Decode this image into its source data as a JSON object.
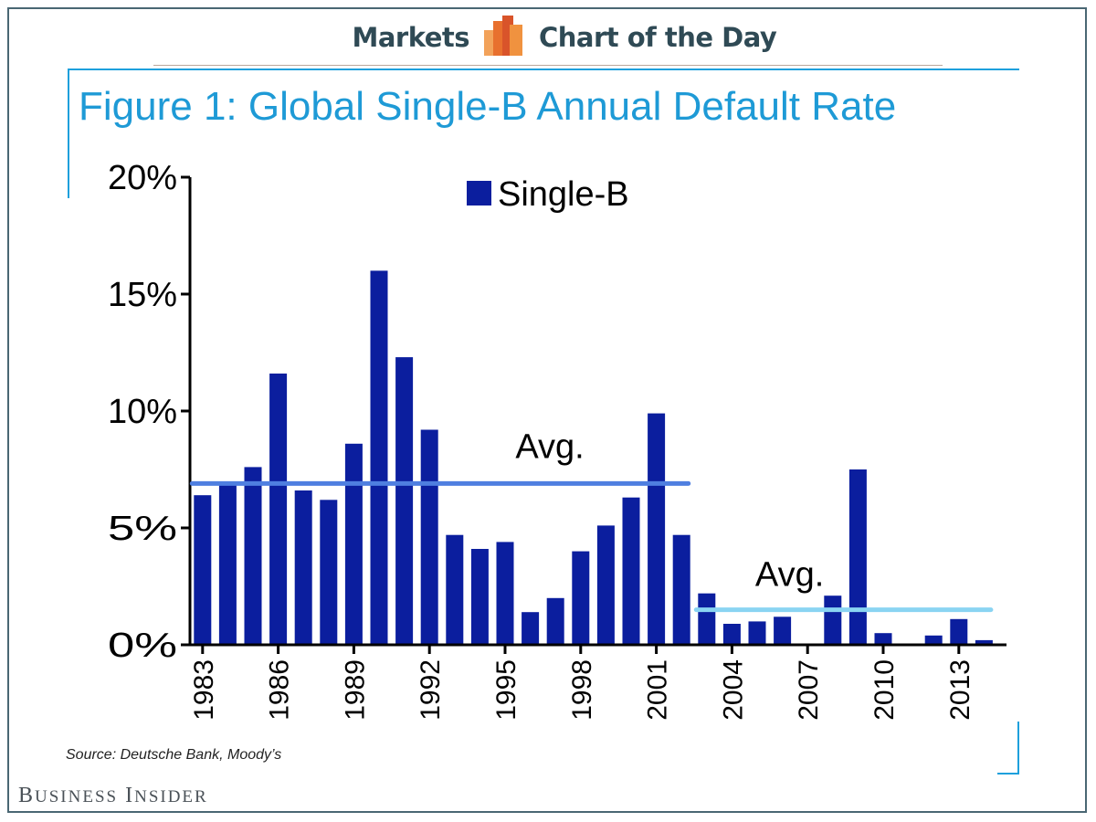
{
  "header": {
    "left_label": "Markets",
    "right_label": "Chart of the Day",
    "icon": "bar-chart-logo-icon"
  },
  "colors": {
    "bar": "#0b1e9e",
    "avg_line_1": "#4f7fe0",
    "avg_line_2": "#8ad4f2",
    "title": "#1e9ad6",
    "frame": "#4a6773"
  },
  "chart_data": {
    "type": "bar",
    "title": "Figure 1: Global Single-B Annual Default Rate",
    "xlabel": "",
    "ylabel": "",
    "ylim": [
      0,
      20
    ],
    "yticks": [
      "0%",
      "5%",
      "10%",
      "15%",
      "20%"
    ],
    "xtick_labels": [
      "1983",
      "1986",
      "1989",
      "1992",
      "1995",
      "1998",
      "2001",
      "2004",
      "2007",
      "2010",
      "2013"
    ],
    "grid": false,
    "legend_position": "top-center",
    "series": [
      {
        "name": "Single-B",
        "categories": [
          "1983",
          "1984",
          "1985",
          "1986",
          "1987",
          "1988",
          "1989",
          "1990",
          "1991",
          "1992",
          "1993",
          "1994",
          "1995",
          "1996",
          "1997",
          "1998",
          "1999",
          "2000",
          "2001",
          "2002",
          "2003",
          "2004",
          "2005",
          "2006",
          "2007",
          "2008",
          "2009",
          "2010",
          "2011",
          "2012",
          "2013",
          "2014"
        ],
        "values": [
          6.4,
          6.9,
          7.6,
          11.6,
          6.6,
          6.2,
          8.6,
          16.0,
          12.3,
          9.2,
          4.7,
          4.1,
          4.4,
          1.4,
          2.0,
          4.0,
          5.1,
          6.3,
          9.9,
          4.7,
          2.2,
          0.9,
          1.0,
          1.2,
          0.0,
          2.1,
          7.5,
          0.5,
          0.0,
          0.4,
          1.1,
          0.2
        ]
      }
    ],
    "averages": [
      {
        "label": "Avg.",
        "value": 6.9,
        "from": "1983",
        "to": "2002"
      },
      {
        "label": "Avg.",
        "value": 1.5,
        "from": "2003",
        "to": "2014"
      }
    ]
  },
  "footer": {
    "source": "Source: Deutsche Bank, Moody’s",
    "brand_b": "B",
    "brand_usiness": "USINESS",
    "brand_i": "I",
    "brand_nsider": "NSIDER"
  }
}
